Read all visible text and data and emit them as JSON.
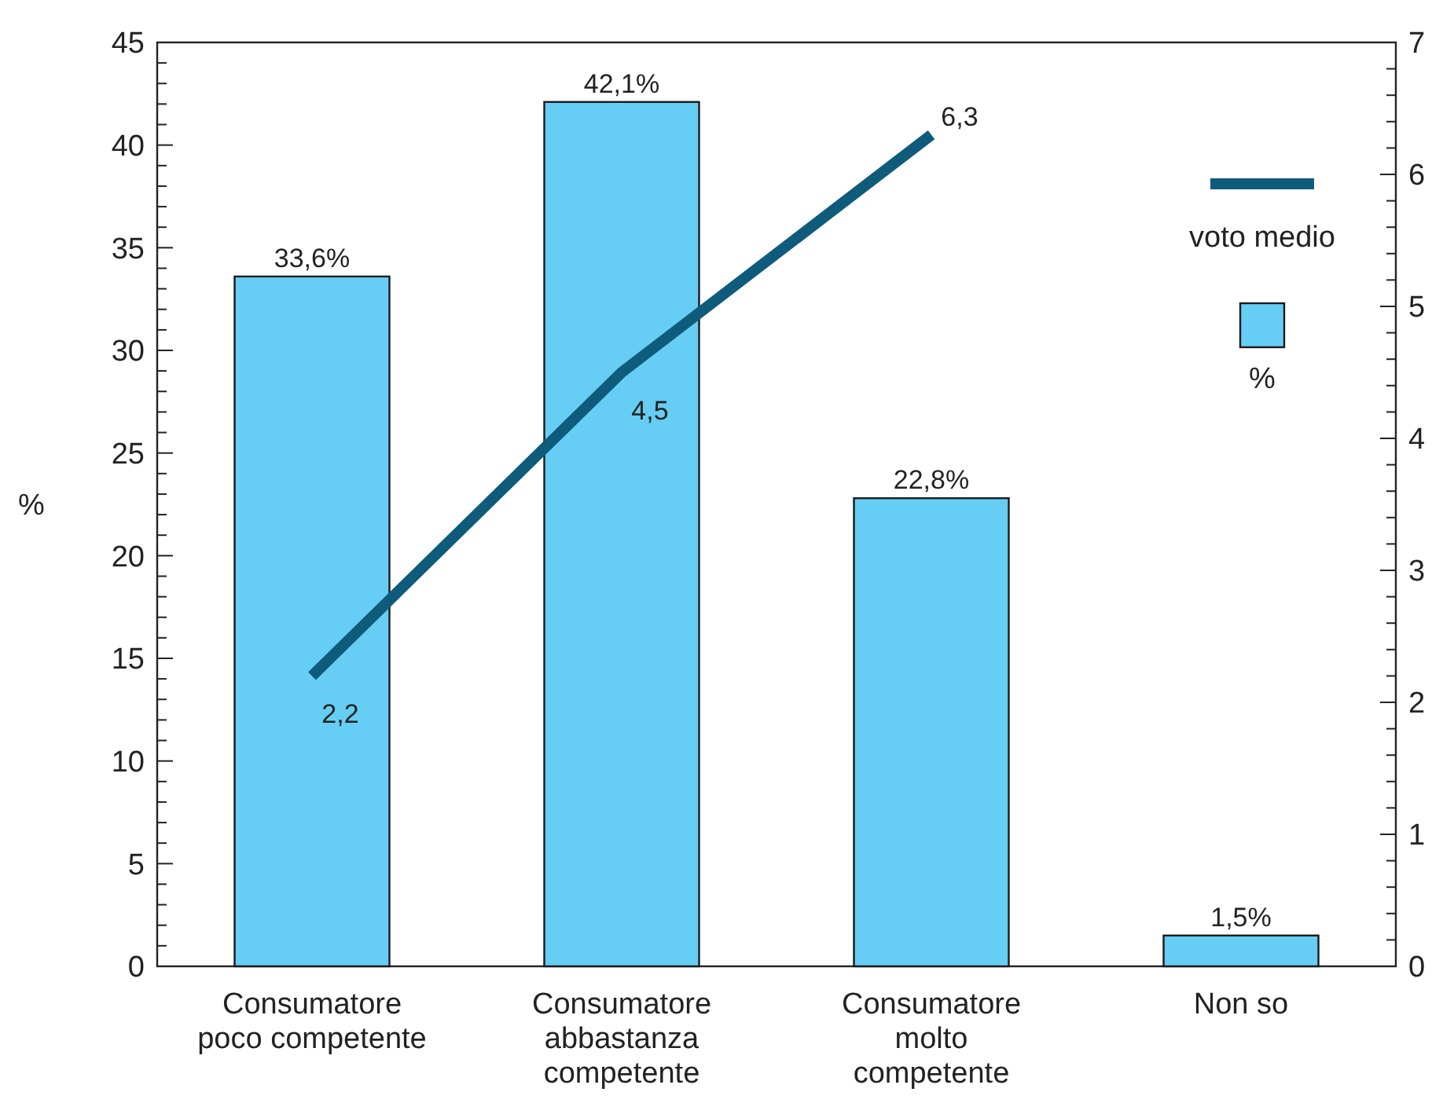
{
  "chart_data": {
    "type": "bar",
    "ylabel": "%",
    "categories": [
      "Consumatore poco competente",
      "Consumatore abbastanza competente",
      "Consumatore molto competente",
      "Non so"
    ],
    "series": [
      {
        "name": "voto medio",
        "type": "line",
        "axis": "y2",
        "color": "#0e5b7b",
        "values": [
          2.2,
          4.5,
          6.3,
          null
        ],
        "value_labels": [
          "2,2",
          "4,5",
          "6,3",
          null
        ]
      },
      {
        "name": "%",
        "color": "#66cdf4",
        "values": [
          33.6,
          42.1,
          22.8,
          1.5
        ],
        "value_labels": [
          "33,6%",
          "42,1%",
          "22,8%",
          "1,5%"
        ]
      }
    ],
    "ylim": [
      0,
      45
    ],
    "yticks": [
      0,
      {
        "value": 1,
        "label": null
      },
      {
        "value": 2,
        "label": null
      },
      {
        "value": 3,
        "label": null
      },
      {
        "value": 4,
        "label": null
      },
      5,
      {
        "value": 6,
        "label": null
      },
      {
        "value": 7,
        "label": null
      },
      {
        "value": 8,
        "label": null
      },
      {
        "value": 9,
        "label": null
      },
      10,
      {
        "value": 11,
        "label": null
      },
      {
        "value": 12,
        "label": null
      },
      {
        "value": 13,
        "label": null
      },
      {
        "value": 14,
        "label": null
      },
      15,
      {
        "value": 16,
        "label": null
      },
      {
        "value": 17,
        "label": null
      },
      {
        "value": 18,
        "label": null
      },
      {
        "value": 19,
        "label": null
      },
      20,
      {
        "value": 21,
        "label": null
      },
      {
        "value": 22,
        "label": null
      },
      {
        "value": 23,
        "label": null
      },
      {
        "value": 24,
        "label": null
      },
      25,
      {
        "value": 26,
        "label": null
      },
      {
        "value": 27,
        "label": null
      },
      {
        "value": 28,
        "label": null
      },
      {
        "value": 29,
        "label": null
      },
      30,
      {
        "value": 31,
        "label": null
      },
      {
        "value": 32,
        "label": null
      },
      {
        "value": 33,
        "label": null
      },
      {
        "value": 34,
        "label": null
      },
      35,
      {
        "value": 36,
        "label": null
      },
      {
        "value": 37,
        "label": null
      },
      {
        "value": 38,
        "label": null
      },
      {
        "value": 39,
        "label": null
      },
      40,
      {
        "value": 41,
        "label": null
      },
      {
        "value": 42,
        "label": null
      },
      {
        "value": 43,
        "label": null
      },
      {
        "value": 44,
        "label": null
      },
      45
    ],
    "y2lim": [
      0,
      7
    ],
    "y2ticks": [
      0,
      {
        "value": 0.2,
        "label": null
      },
      {
        "value": 0.4,
        "label": null
      },
      {
        "value": 0.6,
        "label": null
      },
      {
        "value": 0.8,
        "label": null
      },
      1,
      {
        "value": 1.2,
        "label": null
      },
      {
        "value": 1.4,
        "label": null
      },
      {
        "value": 1.6,
        "label": null
      },
      {
        "value": 1.8,
        "label": null
      },
      2,
      {
        "value": 2.2,
        "label": null
      },
      {
        "value": 2.4,
        "label": null
      },
      {
        "value": 2.6,
        "label": null
      },
      {
        "value": 2.8,
        "label": null
      },
      3,
      {
        "value": 3.2,
        "label": null
      },
      {
        "value": 3.4,
        "label": null
      },
      {
        "value": 3.6,
        "label": null
      },
      {
        "value": 3.8,
        "label": null
      },
      4,
      {
        "value": 4.2,
        "label": null
      },
      {
        "value": 4.4,
        "label": null
      },
      {
        "value": 4.6,
        "label": null
      },
      {
        "value": 4.8,
        "label": null
      },
      5,
      {
        "value": 5.2,
        "label": null
      },
      {
        "value": 5.4,
        "label": null
      },
      {
        "value": 5.6,
        "label": null
      },
      {
        "value": 5.8,
        "label": null
      },
      6,
      {
        "value": 6.2,
        "label": null
      },
      {
        "value": 6.4,
        "label": null
      },
      {
        "value": 6.6,
        "label": null
      },
      {
        "value": 6.8,
        "label": null
      },
      7
    ],
    "legend": "top right"
  }
}
